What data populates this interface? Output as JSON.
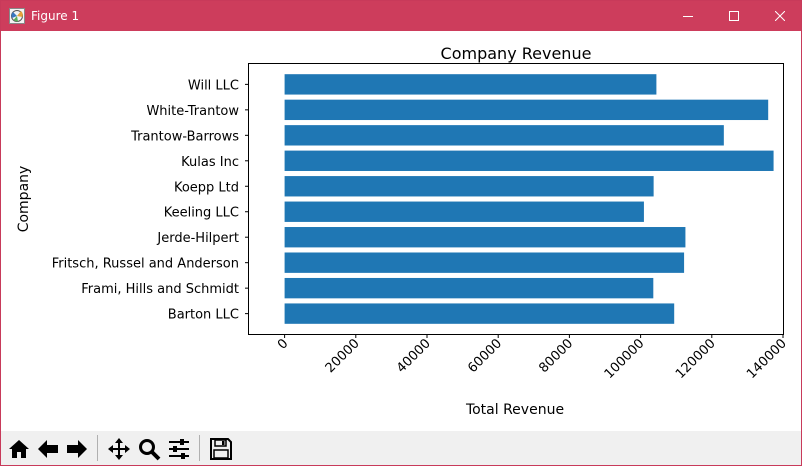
{
  "window": {
    "title": "Figure 1",
    "colors": {
      "titlebar": "#cd3d5c",
      "bar": "#1f77b4"
    }
  },
  "toolbar": {
    "buttons": [
      {
        "name": "home-button",
        "icon": "home-icon"
      },
      {
        "name": "back-button",
        "icon": "arrow-left-icon"
      },
      {
        "name": "forward-button",
        "icon": "arrow-right-icon"
      },
      {
        "name": "pan-button",
        "icon": "move-icon"
      },
      {
        "name": "zoom-button",
        "icon": "magnifier-icon"
      },
      {
        "name": "configure-subplots-button",
        "icon": "sliders-icon"
      },
      {
        "name": "save-button",
        "icon": "floppy-disk-icon"
      }
    ]
  },
  "chart_data": {
    "type": "bar",
    "orientation": "horizontal",
    "title": "Company Revenue",
    "xlabel": "Total Revenue",
    "ylabel": "Company",
    "categories": [
      "Barton LLC",
      "Frami, Hills and Schmidt",
      "Fritsch, Russel and Anderson",
      "Jerde-Hilpert",
      "Keeling LLC",
      "Koepp Ltd",
      "Kulas Inc",
      "Trantow-Barrows",
      "White-Trantow",
      "Will LLC"
    ],
    "values": [
      109438,
      103570,
      112214,
      112591,
      100934,
      103660,
      137352,
      123381,
      135841,
      104437
    ],
    "xlim": [
      -10000,
      140000
    ],
    "xticks": [
      "0",
      "20000",
      "40000",
      "60000",
      "80000",
      "100000",
      "120000",
      "140000"
    ],
    "xtick_rotation": 45,
    "grid": false,
    "legend": "none"
  }
}
